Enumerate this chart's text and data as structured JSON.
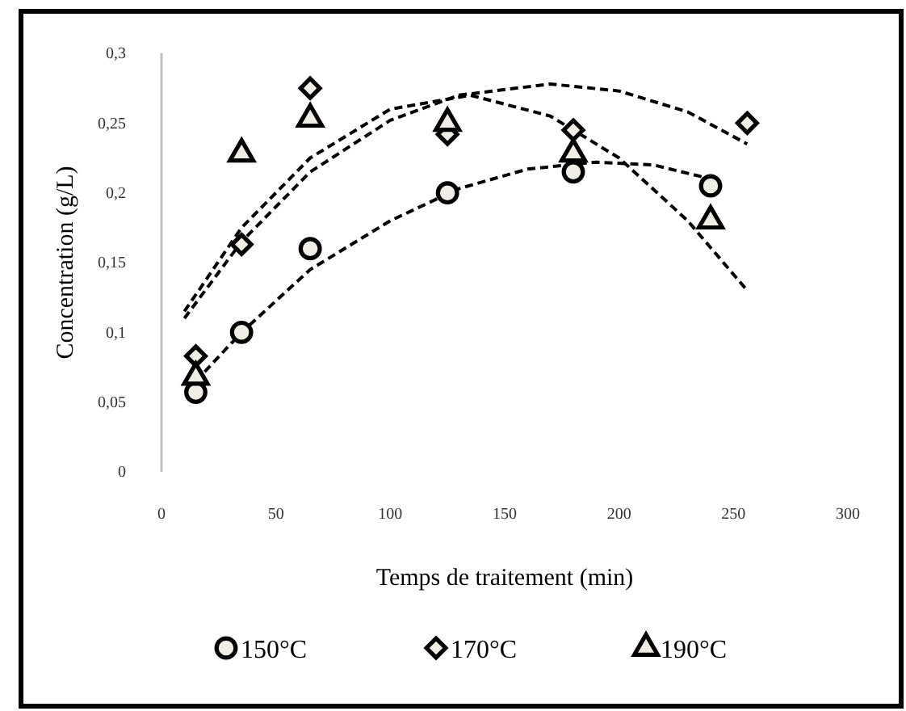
{
  "chart_data": {
    "type": "scatter",
    "xlabel": "Temps de traitement (min)",
    "ylabel": "Concentration (g/L)",
    "xlim": [
      0,
      300
    ],
    "xticks": [
      0,
      50,
      100,
      150,
      200,
      250,
      300
    ],
    "ylim": [
      0,
      0.3
    ],
    "yticks": [
      {
        "value": 0,
        "label": "0"
      },
      {
        "value": 0.05,
        "label": "0,05"
      },
      {
        "value": 0.1,
        "label": "0,1"
      },
      {
        "value": 0.15,
        "label": "0,15"
      },
      {
        "value": 0.2,
        "label": "0,2"
      },
      {
        "value": 0.25,
        "label": "0,25"
      },
      {
        "value": 0.3,
        "label": "0,3"
      }
    ],
    "grid": false,
    "legend": "bottom",
    "series": [
      {
        "name": "150°C",
        "type": "scatter",
        "marker": "circle",
        "color": "#000000",
        "x": [
          15,
          35,
          65,
          125,
          180,
          240
        ],
        "values": [
          0.057,
          0.1,
          0.16,
          0.2,
          0.215,
          0.205
        ]
      },
      {
        "name": "170°C",
        "type": "scatter",
        "marker": "diamond",
        "color": "#000000",
        "x": [
          15,
          35,
          65,
          125,
          180,
          256
        ],
        "values": [
          0.083,
          0.163,
          0.275,
          0.242,
          0.245,
          0.25
        ]
      },
      {
        "name": "190°C",
        "type": "scatter",
        "marker": "triangle",
        "color": "#000000",
        "x": [
          15,
          35,
          65,
          125,
          180,
          240
        ],
        "values": [
          0.068,
          0.228,
          0.253,
          0.25,
          0.228,
          0.18
        ]
      },
      {
        "type": "line",
        "marker": "none",
        "line_style": "dashed",
        "color": "#000000",
        "x": [
          15,
          35,
          65,
          100,
          130,
          160,
          190,
          215,
          240
        ],
        "values": [
          0.065,
          0.1,
          0.145,
          0.18,
          0.203,
          0.217,
          0.222,
          0.22,
          0.21
        ]
      },
      {
        "type": "line",
        "marker": "none",
        "line_style": "dashed",
        "color": "#000000",
        "x": [
          10,
          35,
          65,
          100,
          130,
          170,
          200,
          230,
          256
        ],
        "values": [
          0.11,
          0.165,
          0.215,
          0.252,
          0.27,
          0.278,
          0.273,
          0.258,
          0.235
        ]
      },
      {
        "type": "line",
        "marker": "none",
        "line_style": "dashed",
        "color": "#000000",
        "x": [
          10,
          35,
          65,
          100,
          135,
          170,
          200,
          230,
          256
        ],
        "values": [
          0.115,
          0.175,
          0.225,
          0.26,
          0.27,
          0.255,
          0.225,
          0.18,
          0.13
        ]
      }
    ]
  }
}
